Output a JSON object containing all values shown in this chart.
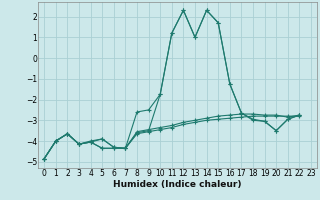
{
  "background_color": "#cce8ea",
  "grid_color": "#aad0d4",
  "line_color": "#1e7a6e",
  "xlabel": "Humidex (Indice chaleur)",
  "xlim": [
    -0.5,
    23.5
  ],
  "ylim": [
    -5.3,
    2.7
  ],
  "yticks": [
    -5,
    -4,
    -3,
    -2,
    -1,
    0,
    1,
    2
  ],
  "xticks": [
    0,
    1,
    2,
    3,
    4,
    5,
    6,
    7,
    8,
    9,
    10,
    11,
    12,
    13,
    14,
    15,
    16,
    17,
    18,
    19,
    20,
    21,
    22,
    23
  ],
  "series": [
    [
      0,
      -4.85
    ],
    [
      1,
      -4.0
    ],
    [
      2,
      -3.65
    ],
    [
      3,
      -4.15
    ],
    [
      4,
      -4.0
    ],
    [
      5,
      -3.9
    ],
    [
      6,
      -4.3
    ],
    [
      7,
      -4.35
    ],
    [
      8,
      -2.6
    ],
    [
      9,
      -2.5
    ],
    [
      10,
      -1.75
    ],
    [
      11,
      1.2
    ],
    [
      12,
      2.3
    ],
    [
      13,
      1.0
    ],
    [
      14,
      2.3
    ],
    [
      15,
      1.7
    ],
    [
      16,
      -1.25
    ],
    [
      17,
      -2.65
    ],
    [
      18,
      -3.0
    ],
    [
      19,
      -3.05
    ],
    [
      20,
      -3.5
    ],
    [
      21,
      -2.95
    ],
    [
      22,
      -2.75
    ]
  ],
  "series2": [
    [
      0,
      -4.85
    ],
    [
      1,
      -4.0
    ],
    [
      2,
      -3.65
    ],
    [
      3,
      -4.15
    ],
    [
      4,
      -4.05
    ],
    [
      5,
      -4.35
    ],
    [
      6,
      -4.35
    ],
    [
      7,
      -4.35
    ],
    [
      8,
      -3.55
    ],
    [
      9,
      -3.45
    ],
    [
      10,
      -3.35
    ],
    [
      11,
      -3.25
    ],
    [
      12,
      -3.1
    ],
    [
      13,
      -3.0
    ],
    [
      14,
      -2.9
    ],
    [
      15,
      -2.8
    ],
    [
      16,
      -2.75
    ],
    [
      17,
      -2.7
    ],
    [
      18,
      -2.7
    ],
    [
      19,
      -2.75
    ],
    [
      20,
      -2.75
    ],
    [
      21,
      -2.85
    ],
    [
      22,
      -2.75
    ]
  ],
  "series3": [
    [
      0,
      -4.85
    ],
    [
      1,
      -4.0
    ],
    [
      2,
      -3.65
    ],
    [
      3,
      -4.15
    ],
    [
      4,
      -4.05
    ],
    [
      5,
      -4.35
    ],
    [
      6,
      -4.35
    ],
    [
      7,
      -4.35
    ],
    [
      8,
      -3.65
    ],
    [
      9,
      -3.55
    ],
    [
      10,
      -3.45
    ],
    [
      11,
      -3.35
    ],
    [
      12,
      -3.2
    ],
    [
      13,
      -3.1
    ],
    [
      14,
      -3.0
    ],
    [
      15,
      -2.95
    ],
    [
      16,
      -2.9
    ],
    [
      17,
      -2.85
    ],
    [
      18,
      -2.8
    ],
    [
      19,
      -2.8
    ],
    [
      20,
      -2.8
    ],
    [
      21,
      -2.8
    ],
    [
      22,
      -2.8
    ]
  ],
  "series4": [
    [
      0,
      -4.85
    ],
    [
      1,
      -4.0
    ],
    [
      2,
      -3.65
    ],
    [
      3,
      -4.15
    ],
    [
      4,
      -4.05
    ],
    [
      5,
      -3.9
    ],
    [
      6,
      -4.3
    ],
    [
      7,
      -4.35
    ],
    [
      8,
      -3.6
    ],
    [
      9,
      -3.5
    ],
    [
      10,
      -1.75
    ],
    [
      11,
      1.2
    ],
    [
      12,
      2.3
    ],
    [
      13,
      1.0
    ],
    [
      14,
      2.3
    ],
    [
      15,
      1.7
    ],
    [
      16,
      -1.25
    ],
    [
      17,
      -2.65
    ],
    [
      18,
      -2.95
    ],
    [
      19,
      -3.05
    ],
    [
      20,
      -3.5
    ],
    [
      21,
      -2.95
    ],
    [
      22,
      -2.75
    ]
  ]
}
